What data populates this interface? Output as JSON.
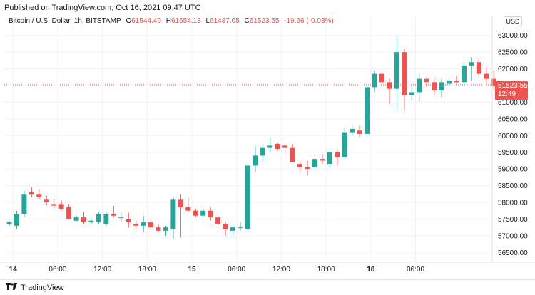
{
  "header": {
    "published": "Published on TradingView.com, Oct 16, 2021 09:47 UTC"
  },
  "legend": {
    "symbol": "Bitcoin / U.S. Dollar, 1h, BITSTAMP",
    "open_label": "O",
    "open": "61544.49",
    "high_label": "H",
    "high": "61654.13",
    "low_label": "L",
    "low": "61487.05",
    "close_label": "C",
    "close": "61523.55",
    "change": "-19.66 (-0.03%)"
  },
  "currency": "USD",
  "last_price": {
    "price": "61523.55",
    "countdown": "12:49"
  },
  "footer": {
    "brand": "TradingView",
    "logo_icon": "tradingview-logo-icon"
  },
  "colors": {
    "up": "#26a69a",
    "down": "#ef5350",
    "grid": "#f0f3fa",
    "text": "#131722"
  },
  "chart_data": {
    "type": "candlestick",
    "y_ticks": [
      "56500.00",
      "57000.00",
      "57500.00",
      "58000.00",
      "58500.00",
      "59000.00",
      "59500.00",
      "60000.00",
      "60500.00",
      "61000.00",
      "61500.00",
      "62000.00",
      "62500.00",
      "63000.00"
    ],
    "ylim": [
      56250,
      63250
    ],
    "x_ticks": [
      {
        "label": "14",
        "bold": true,
        "index": 0.5
      },
      {
        "label": "06:00",
        "bold": false,
        "index": 6.5
      },
      {
        "label": "12:00",
        "bold": false,
        "index": 12.5
      },
      {
        "label": "18:00",
        "bold": false,
        "index": 18.5
      },
      {
        "label": "15",
        "bold": true,
        "index": 24.5
      },
      {
        "label": "06:00",
        "bold": false,
        "index": 30.5
      },
      {
        "label": "12:00",
        "bold": false,
        "index": 36.5
      },
      {
        "label": "18:00",
        "bold": false,
        "index": 42.5
      },
      {
        "label": "16",
        "bold": true,
        "index": 48.5
      },
      {
        "label": "06:00",
        "bold": false,
        "index": 54.5
      }
    ],
    "last_price_line": 61523.55,
    "candles": [
      [
        57350,
        57450,
        57300,
        57400
      ],
      [
        57300,
        57750,
        57200,
        57650
      ],
      [
        57650,
        58350,
        57550,
        58250
      ],
      [
        58300,
        58450,
        58150,
        58250
      ],
      [
        58250,
        58400,
        58100,
        58150
      ],
      [
        58100,
        58200,
        57900,
        58000
      ],
      [
        57950,
        58100,
        57800,
        57900
      ],
      [
        57950,
        58050,
        57750,
        57800
      ],
      [
        57850,
        57950,
        57500,
        57500
      ],
      [
        57450,
        57600,
        57400,
        57550
      ],
      [
        57550,
        57700,
        57350,
        57400
      ],
      [
        57400,
        57500,
        57350,
        57450
      ],
      [
        57400,
        57700,
        57350,
        57650
      ],
      [
        57350,
        57700,
        57300,
        57650
      ],
      [
        57650,
        57900,
        57550,
        57600
      ],
      [
        57550,
        57700,
        57400,
        57550
      ],
      [
        57500,
        57700,
        57250,
        57400
      ],
      [
        57350,
        57450,
        57200,
        57300
      ],
      [
        57300,
        57600,
        57100,
        57400
      ],
      [
        57400,
        57500,
        57200,
        57250
      ],
      [
        57250,
        57350,
        57100,
        57150
      ],
      [
        57150,
        57300,
        57000,
        57250
      ],
      [
        57200,
        58150,
        56900,
        58100
      ],
      [
        58100,
        58250,
        56950,
        57850
      ],
      [
        57850,
        58150,
        57700,
        57750
      ],
      [
        57750,
        57800,
        57550,
        57600
      ],
      [
        57600,
        57800,
        57550,
        57750
      ],
      [
        57750,
        57850,
        57450,
        57550
      ],
      [
        57550,
        57600,
        57200,
        57350
      ],
      [
        57350,
        57400,
        57000,
        57200
      ],
      [
        57150,
        57350,
        57000,
        57250
      ],
      [
        57250,
        57400,
        57150,
        57250
      ],
      [
        57200,
        59150,
        57100,
        59100
      ],
      [
        59100,
        59700,
        58900,
        59400
      ],
      [
        59400,
        59750,
        59200,
        59650
      ],
      [
        59650,
        59950,
        59500,
        59700
      ],
      [
        59750,
        59800,
        59550,
        59600
      ],
      [
        59700,
        59750,
        59450,
        59650
      ],
      [
        59650,
        59750,
        59200,
        59200
      ],
      [
        59150,
        59250,
        58900,
        59050
      ],
      [
        59050,
        59250,
        58800,
        59000
      ],
      [
        59050,
        59450,
        58900,
        59300
      ],
      [
        59300,
        59450,
        59150,
        59250
      ],
      [
        59150,
        59550,
        59050,
        59500
      ],
      [
        59500,
        59550,
        59100,
        59350
      ],
      [
        59350,
        60250,
        59300,
        60100
      ],
      [
        60100,
        60350,
        60000,
        60200
      ],
      [
        60150,
        60300,
        59950,
        60050
      ],
      [
        60050,
        61500,
        60000,
        61450
      ],
      [
        61450,
        61950,
        61300,
        61850
      ],
      [
        61850,
        62000,
        61450,
        61600
      ],
      [
        61600,
        61700,
        60950,
        61400
      ],
      [
        61400,
        62950,
        60800,
        62500
      ],
      [
        62500,
        62600,
        60750,
        61200
      ],
      [
        61200,
        61500,
        61050,
        61300
      ],
      [
        61300,
        61850,
        61000,
        61700
      ],
      [
        61700,
        61750,
        61450,
        61600
      ],
      [
        61600,
        61750,
        61200,
        61350
      ],
      [
        61350,
        61700,
        61150,
        61600
      ],
      [
        61550,
        61800,
        61400,
        61650
      ],
      [
        61650,
        61800,
        61550,
        61600
      ],
      [
        61600,
        62200,
        61550,
        62100
      ],
      [
        62100,
        62350,
        61650,
        62200
      ],
      [
        62200,
        62300,
        61700,
        61850
      ],
      [
        61850,
        62050,
        61500,
        61700
      ],
      [
        61700,
        61950,
        61400,
        61500
      ],
      [
        61544.49,
        61654.13,
        61487.05,
        61523.55
      ]
    ]
  }
}
